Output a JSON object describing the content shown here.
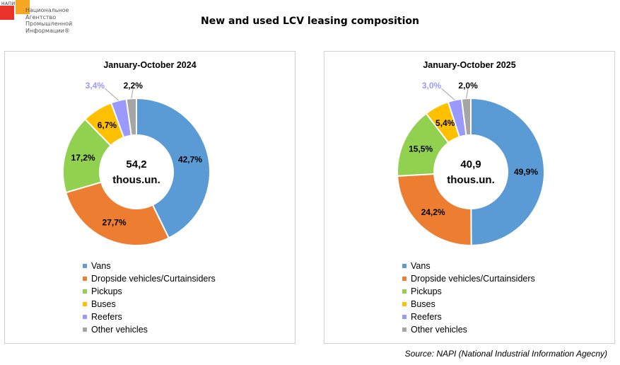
{
  "logo": {
    "abbr": "НАПИ",
    "name": "Национальное\nАгентство\nПромышленной\nИнформации®"
  },
  "title": "New and used LCV leasing composition",
  "source": "Source: NAPI (National Industrial Information Agecny)",
  "colors": {
    "Vans": "#5b9bd5",
    "Dropside vehicles/Curtainsiders": "#ed7d31",
    "Pickups": "#92d050",
    "Buses": "#ffc000",
    "Reefers": "#9999ff",
    "Other vehicles": "#a5a5a5"
  },
  "chart_data": [
    {
      "type": "pie",
      "donut": true,
      "title": "January-October 2024",
      "center_label": [
        "54,2",
        "thous.un."
      ],
      "categories": [
        "Vans",
        "Dropside vehicles/Curtainsiders",
        "Pickups",
        "Buses",
        "Reefers",
        "Other vehicles"
      ],
      "values": [
        42.7,
        27.7,
        17.2,
        6.7,
        3.4,
        2.2
      ],
      "labels": [
        "42,7%",
        "27,7%",
        "17,2%",
        "6,7%",
        "3,4%",
        "2,2%"
      ],
      "legend": "bottom"
    },
    {
      "type": "pie",
      "donut": true,
      "title": "January-October 2025",
      "center_label": [
        "40,9",
        "thous.un."
      ],
      "categories": [
        "Vans",
        "Dropside vehicles/Curtainsiders",
        "Pickups",
        "Buses",
        "Reefers",
        "Other vehicles"
      ],
      "values": [
        49.9,
        24.2,
        15.5,
        5.4,
        3.0,
        2.0
      ],
      "labels": [
        "49,9%",
        "24,2%",
        "15,5%",
        "5,4%",
        "3,0%",
        "2,0%"
      ],
      "legend": "bottom"
    }
  ]
}
